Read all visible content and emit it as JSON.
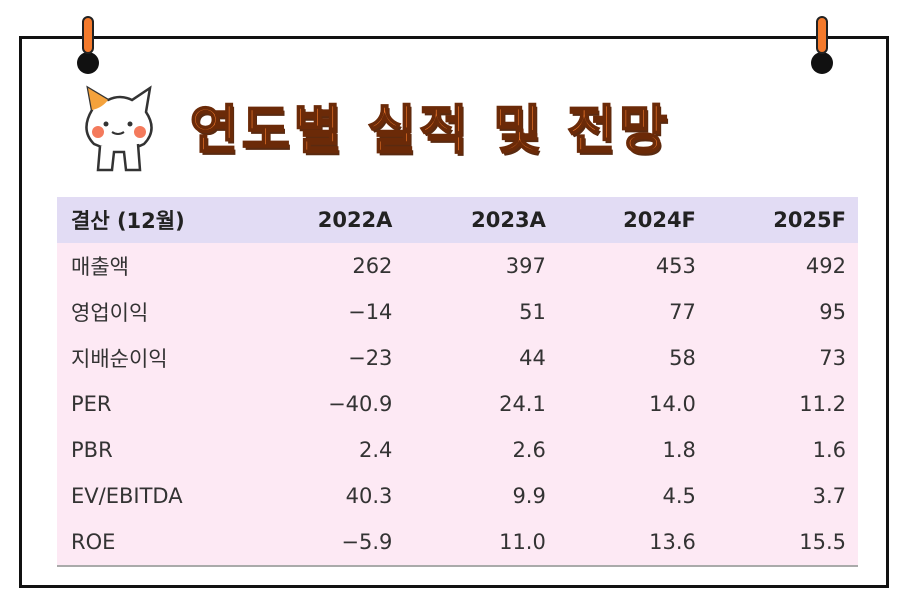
{
  "header": {
    "title": "연도별 실적 및 전망"
  },
  "table": {
    "columns": [
      "결산 (12월)",
      "2022A",
      "2023A",
      "2024F",
      "2025F"
    ],
    "rows": [
      [
        "매출액",
        "262",
        "397",
        "453",
        "492"
      ],
      [
        "영업이익",
        "−14",
        "51",
        "77",
        "95"
      ],
      [
        "지배순이익",
        "−23",
        "44",
        "58",
        "73"
      ],
      [
        "PER",
        "−40.9",
        "24.1",
        "14.0",
        "11.2"
      ],
      [
        "PBR",
        "2.4",
        "2.6",
        "1.8",
        "1.6"
      ],
      [
        "EV/EBITDA",
        "40.3",
        "9.9",
        "4.5",
        "3.7"
      ],
      [
        "ROE",
        "−5.9",
        "11.0",
        "13.6",
        "15.5"
      ]
    ]
  }
}
